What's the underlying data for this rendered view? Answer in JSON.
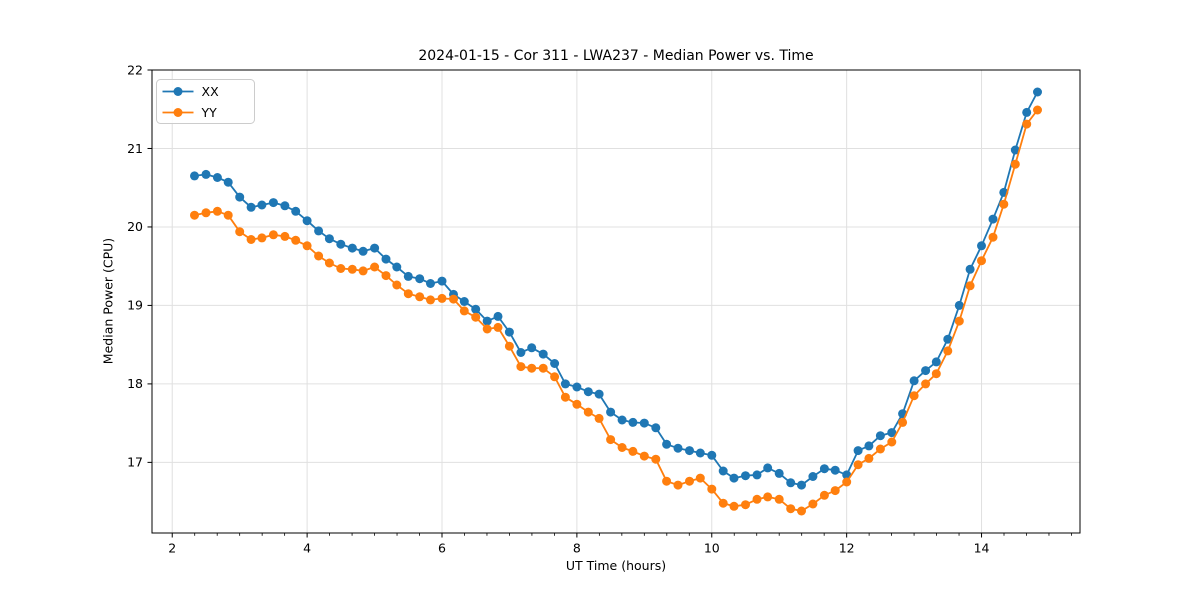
{
  "figure": {
    "background": "#ffffff"
  },
  "chart_data": {
    "type": "line",
    "title": "2024-01-15 - Cor 311 - LWA237 - Median Power vs. Time",
    "xlabel": "UT Time (hours)",
    "ylabel": "Median Power (CPU)",
    "xlim": [
      1.7,
      15.46
    ],
    "ylim": [
      16.1,
      22.0
    ],
    "xticks": [
      2,
      4,
      6,
      8,
      10,
      12,
      14
    ],
    "yticks": [
      17,
      18,
      19,
      20,
      21,
      22
    ],
    "x_minor_step": 0.33333,
    "grid": true,
    "legend_position": "upper left",
    "style": {
      "grid_color": "#e0e0e0",
      "spine_color": "#000000",
      "tick_color": "#000000",
      "text_color": "#000000",
      "legend_border": "#cccccc",
      "legend_bg": "#ffffff",
      "marker_radius": 4.5,
      "line_width": 1.8
    },
    "x": [
      2.33,
      2.5,
      2.67,
      2.83,
      3.0,
      3.17,
      3.33,
      3.5,
      3.67,
      3.83,
      4.0,
      4.17,
      4.33,
      4.5,
      4.67,
      4.83,
      5.0,
      5.17,
      5.33,
      5.5,
      5.67,
      5.83,
      6.0,
      6.17,
      6.33,
      6.5,
      6.67,
      6.83,
      7.0,
      7.17,
      7.33,
      7.5,
      7.67,
      7.83,
      8.0,
      8.17,
      8.33,
      8.5,
      8.67,
      8.83,
      9.0,
      9.17,
      9.33,
      9.5,
      9.67,
      9.83,
      10.0,
      10.17,
      10.33,
      10.5,
      10.67,
      10.83,
      11.0,
      11.17,
      11.33,
      11.5,
      11.67,
      11.83,
      12.0,
      12.17,
      12.33,
      12.5,
      12.67,
      12.83,
      13.0,
      13.17,
      13.33,
      13.5,
      13.67,
      13.83,
      14.0,
      14.17,
      14.33,
      14.5,
      14.67,
      14.83
    ],
    "series": [
      {
        "name": "XX",
        "color": "#1f77b4",
        "values": [
          20.65,
          20.67,
          20.63,
          20.57,
          20.38,
          20.25,
          20.28,
          20.31,
          20.27,
          20.2,
          20.08,
          19.95,
          19.85,
          19.78,
          19.73,
          19.69,
          19.73,
          19.59,
          19.49,
          19.37,
          19.34,
          19.28,
          19.31,
          19.14,
          19.05,
          18.95,
          18.8,
          18.86,
          18.66,
          18.4,
          18.46,
          18.38,
          18.26,
          18.0,
          17.96,
          17.9,
          17.87,
          17.64,
          17.54,
          17.51,
          17.5,
          17.44,
          17.23,
          17.18,
          17.15,
          17.12,
          17.09,
          16.89,
          16.8,
          16.83,
          16.84,
          16.93,
          16.86,
          16.74,
          16.71,
          16.82,
          16.92,
          16.9,
          16.84,
          17.15,
          17.21,
          17.34,
          17.38,
          17.62,
          18.04,
          18.17,
          18.28,
          18.57,
          19.0,
          19.46,
          19.76,
          20.1,
          20.44,
          20.98,
          21.46,
          21.72
        ]
      },
      {
        "name": "YY",
        "color": "#ff7f0e",
        "values": [
          20.15,
          20.18,
          20.2,
          20.15,
          19.94,
          19.84,
          19.86,
          19.9,
          19.88,
          19.83,
          19.76,
          19.63,
          19.54,
          19.47,
          19.46,
          19.44,
          19.49,
          19.38,
          19.26,
          19.15,
          19.11,
          19.07,
          19.09,
          19.08,
          18.93,
          18.85,
          18.7,
          18.72,
          18.48,
          18.22,
          18.2,
          18.2,
          18.09,
          17.83,
          17.74,
          17.64,
          17.56,
          17.29,
          17.19,
          17.14,
          17.08,
          17.04,
          16.76,
          16.71,
          16.76,
          16.8,
          16.66,
          16.48,
          16.44,
          16.46,
          16.53,
          16.56,
          16.53,
          16.41,
          16.38,
          16.47,
          16.58,
          16.64,
          16.75,
          16.97,
          17.05,
          17.17,
          17.26,
          17.51,
          17.85,
          18.0,
          18.13,
          18.42,
          18.8,
          19.25,
          19.57,
          19.87,
          20.29,
          20.8,
          21.31,
          21.49
        ]
      }
    ]
  }
}
